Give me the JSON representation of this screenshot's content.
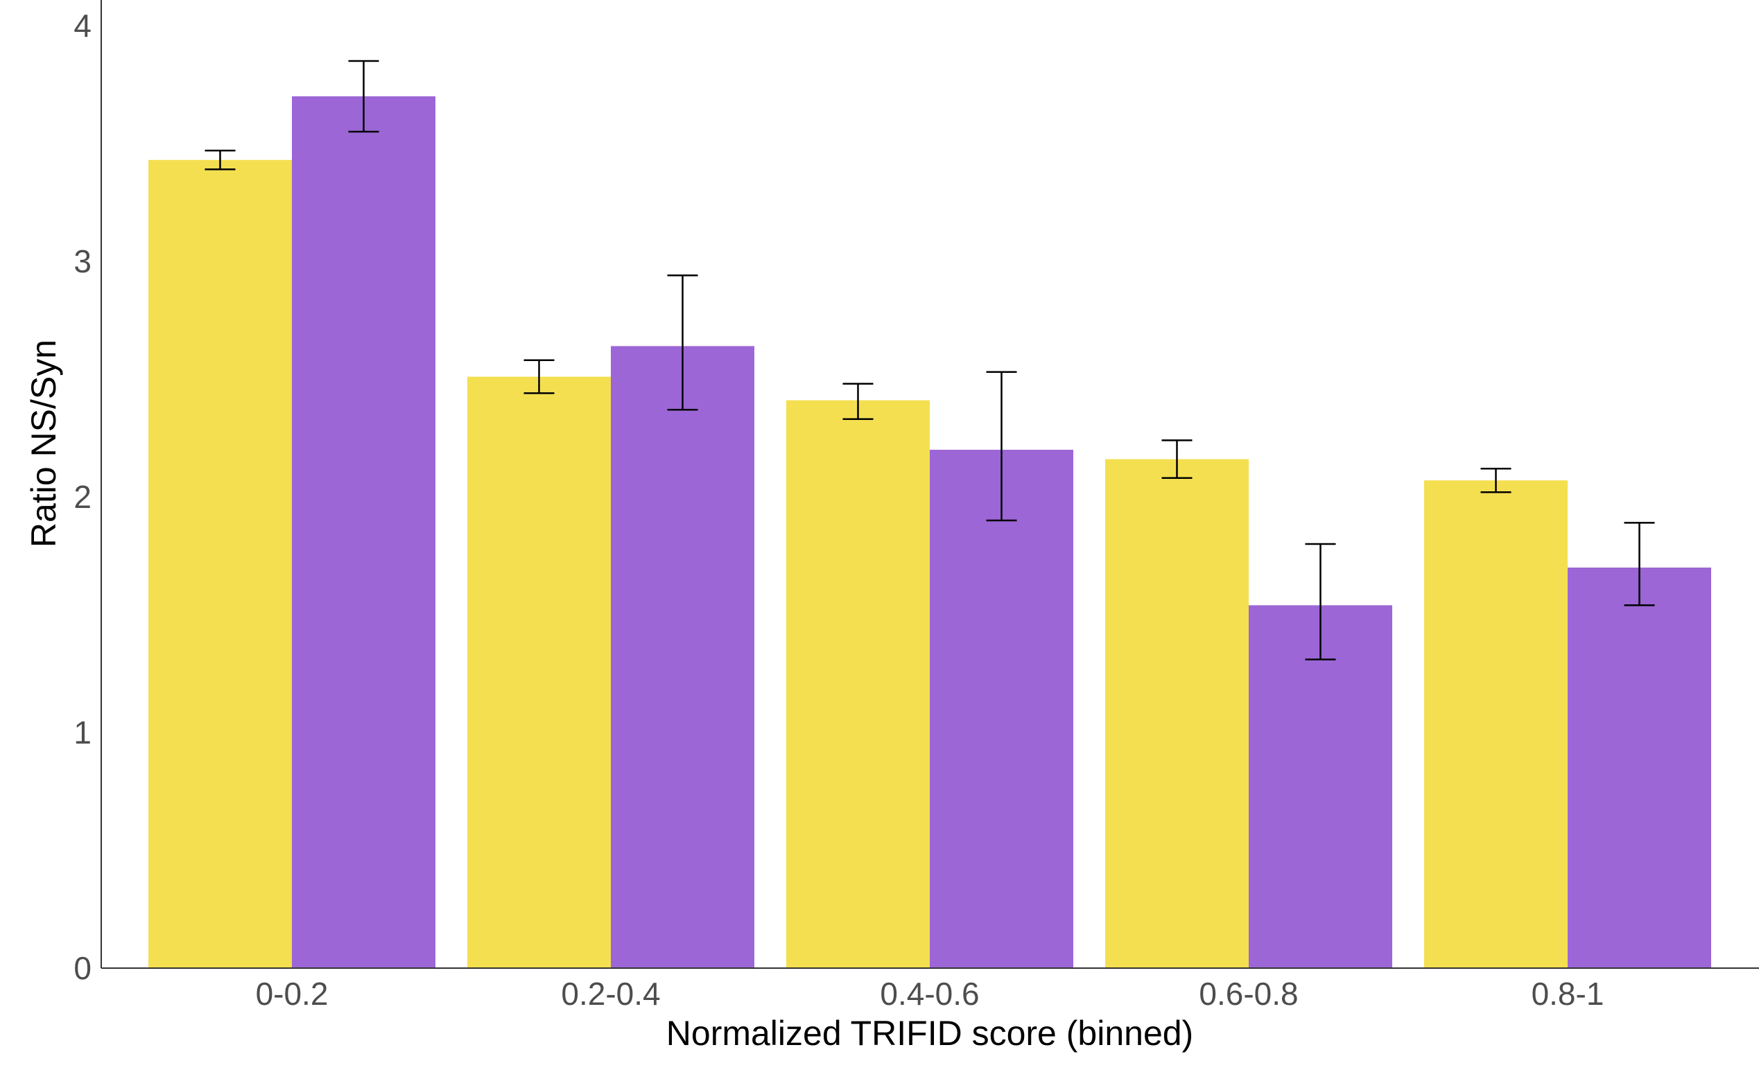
{
  "chart_data": {
    "type": "bar",
    "title": "",
    "xlabel": "Normalized TRIFID score (binned)",
    "ylabel": "Ratio NS/Syn",
    "categories": [
      "0-0.2",
      "0.2-0.4",
      "0.4-0.6",
      "0.6-0.8",
      "0.8-1"
    ],
    "ylim": [
      0,
      4.15
    ],
    "yticks": [
      0,
      1,
      2,
      3,
      4
    ],
    "grid": false,
    "legend": "none",
    "series": [
      {
        "color": "#F4DF50",
        "values": [
          3.43,
          2.51,
          2.41,
          2.16,
          2.07
        ],
        "error_low": [
          3.39,
          2.44,
          2.33,
          2.08,
          2.02
        ],
        "error_high": [
          3.47,
          2.58,
          2.48,
          2.24,
          2.12
        ]
      },
      {
        "color": "#9C66D6",
        "values": [
          3.7,
          2.64,
          2.2,
          1.54,
          1.7
        ],
        "error_low": [
          3.55,
          2.37,
          1.9,
          1.31,
          1.54
        ],
        "error_high": [
          3.85,
          2.94,
          2.53,
          1.8,
          1.89
        ]
      }
    ]
  }
}
